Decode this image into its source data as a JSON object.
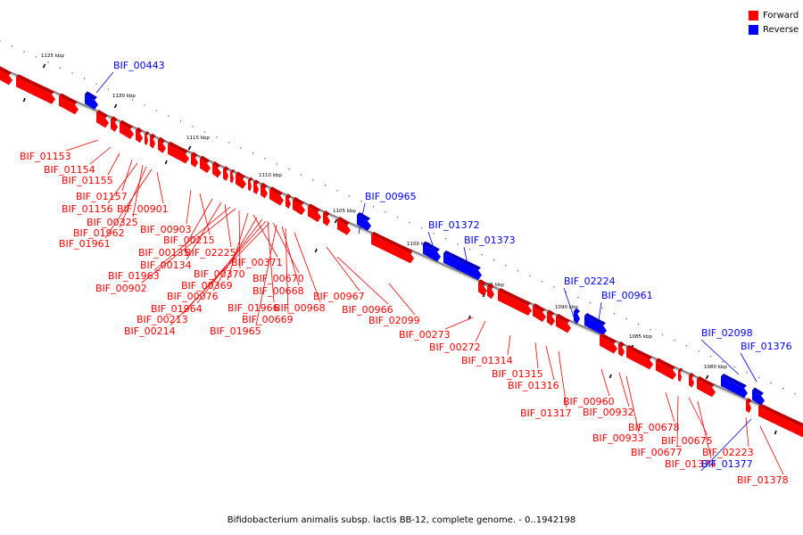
{
  "caption": "Bifidobacterium animalis subsp. lactis BB-12, complete genome. - 0..1942198",
  "legend": [
    {
      "label": "Forward",
      "color": "#ff0000"
    },
    {
      "label": "Reverse",
      "color": "#0000ff"
    }
  ],
  "colors": {
    "forward": "#ff0000",
    "reverse": "#0000ff",
    "backbone": "#888888"
  },
  "scale_labels": [
    "1125 kbp",
    "1120 kbp",
    "1115 kbp",
    "1110 kbp",
    "1105 kbp",
    "1100 kbp",
    "1095 kbp",
    "1090 kbp",
    "1085 kbp",
    "1080 kbp"
  ],
  "genes": [
    {
      "label": "BIF_00443",
      "strand": "reverse"
    },
    {
      "label": "BIF_01153",
      "strand": "forward"
    },
    {
      "label": "BIF_01154",
      "strand": "forward"
    },
    {
      "label": "BIF_01155",
      "strand": "forward"
    },
    {
      "label": "BIF_01157",
      "strand": "forward"
    },
    {
      "label": "BIF_01156",
      "strand": "forward"
    },
    {
      "label": "BIF_00325",
      "strand": "forward"
    },
    {
      "label": "BIF_00901",
      "strand": "forward"
    },
    {
      "label": "BIF_01962",
      "strand": "forward"
    },
    {
      "label": "BIF_01961",
      "strand": "forward"
    },
    {
      "label": "BIF_00903",
      "strand": "forward"
    },
    {
      "label": "BIF_00215",
      "strand": "forward"
    },
    {
      "label": "BIF_00135",
      "strand": "forward"
    },
    {
      "label": "BIF_02225",
      "strand": "forward"
    },
    {
      "label": "BIF_00134",
      "strand": "forward"
    },
    {
      "label": "BIF_00371",
      "strand": "forward"
    },
    {
      "label": "BIF_01963",
      "strand": "forward"
    },
    {
      "label": "BIF_00370",
      "strand": "forward"
    },
    {
      "label": "BIF_00902",
      "strand": "forward"
    },
    {
      "label": "BIF_00369",
      "strand": "forward"
    },
    {
      "label": "BIF_00670",
      "strand": "forward"
    },
    {
      "label": "BIF_00076",
      "strand": "forward"
    },
    {
      "label": "BIF_00668",
      "strand": "forward"
    },
    {
      "label": "BIF_00967",
      "strand": "forward"
    },
    {
      "label": "BIF_01964",
      "strand": "forward"
    },
    {
      "label": "BIF_01966",
      "strand": "forward"
    },
    {
      "label": "BIF_00968",
      "strand": "forward"
    },
    {
      "label": "BIF_00966",
      "strand": "forward"
    },
    {
      "label": "BIF_00213",
      "strand": "forward"
    },
    {
      "label": "BIF_00669",
      "strand": "forward"
    },
    {
      "label": "BIF_02099",
      "strand": "forward"
    },
    {
      "label": "BIF_00214",
      "strand": "forward"
    },
    {
      "label": "BIF_01965",
      "strand": "forward"
    },
    {
      "label": "BIF_00965",
      "strand": "reverse"
    },
    {
      "label": "BIF_01372",
      "strand": "reverse"
    },
    {
      "label": "BIF_01373",
      "strand": "reverse"
    },
    {
      "label": "BIF_02224",
      "strand": "reverse"
    },
    {
      "label": "BIF_00961",
      "strand": "reverse"
    },
    {
      "label": "BIF_00273",
      "strand": "forward"
    },
    {
      "label": "BIF_00272",
      "strand": "forward"
    },
    {
      "label": "BIF_01314",
      "strand": "forward"
    },
    {
      "label": "BIF_01315",
      "strand": "forward"
    },
    {
      "label": "BIF_01316",
      "strand": "forward"
    },
    {
      "label": "BIF_01317",
      "strand": "forward"
    },
    {
      "label": "BIF_00960",
      "strand": "forward"
    },
    {
      "label": "BIF_00932",
      "strand": "forward"
    },
    {
      "label": "BIF_00933",
      "strand": "forward"
    },
    {
      "label": "BIF_00678",
      "strand": "forward"
    },
    {
      "label": "BIF_00677",
      "strand": "forward"
    },
    {
      "label": "BIF_00675",
      "strand": "forward"
    },
    {
      "label": "BIF_01374",
      "strand": "forward"
    },
    {
      "label": "BIF_02098",
      "strand": "reverse"
    },
    {
      "label": "BIF_01376",
      "strand": "reverse"
    },
    {
      "label": "BIF_02223",
      "strand": "forward"
    },
    {
      "label": "BIF_01377",
      "strand": "reverse"
    },
    {
      "label": "BIF_01378",
      "strand": "forward"
    }
  ]
}
